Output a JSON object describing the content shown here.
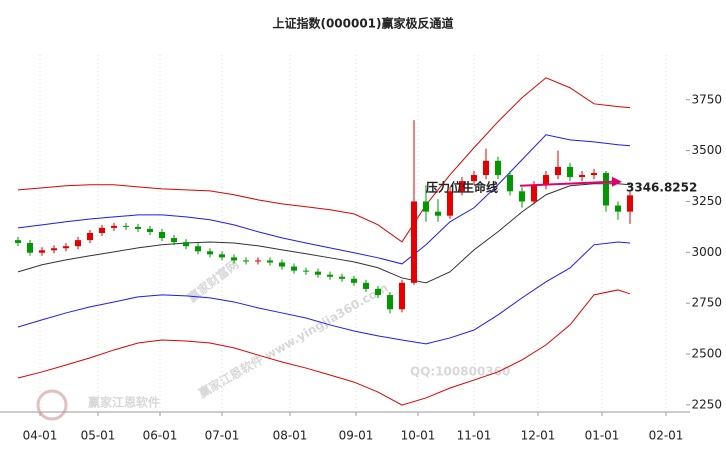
{
  "chart_data": {
    "type": "candlestick",
    "title": "上证指数(000001)赢家极反通道",
    "xlim": [
      -4.5,
      168
    ],
    "ylim": [
      2215,
      3970
    ],
    "yticks": [
      2250,
      2500,
      2750,
      3000,
      3250,
      3500,
      3750
    ],
    "xticks": [
      {
        "value": 5.5,
        "label": "04-01"
      },
      {
        "value": 20,
        "label": "05-01"
      },
      {
        "value": 35.5,
        "label": "06-01"
      },
      {
        "value": 51,
        "label": "07-01"
      },
      {
        "value": 68,
        "label": "08-01"
      },
      {
        "value": 84.5,
        "label": "09-01"
      },
      {
        "value": 100,
        "label": "10-01"
      },
      {
        "value": 114,
        "label": "11-01"
      },
      {
        "value": 130,
        "label": "12-01"
      },
      {
        "value": 146,
        "label": "01-01"
      },
      {
        "value": 162,
        "label": "02-01"
      }
    ],
    "up_color": "#e60000",
    "down_color": "#009900",
    "x": [
      0,
      3,
      6,
      9,
      12,
      15,
      18,
      21,
      24,
      27,
      30,
      33,
      36,
      39,
      42,
      45,
      48,
      51,
      54,
      57,
      60,
      63,
      66,
      69,
      72,
      75,
      78,
      81,
      84,
      87,
      90,
      93,
      96,
      99,
      102,
      105,
      108,
      111,
      114,
      117,
      120,
      123,
      126,
      129,
      132,
      135,
      138,
      141,
      144,
      147,
      150,
      153
    ],
    "open": [
      3060,
      3046,
      2998,
      3010,
      3020,
      3030,
      3060,
      3095,
      3120,
      3130,
      3125,
      3115,
      3100,
      3070,
      3050,
      3030,
      3005,
      2990,
      2975,
      2960,
      2955,
      2960,
      2950,
      2930,
      2910,
      2905,
      2890,
      2880,
      2870,
      2850,
      2820,
      2790,
      2720,
      2850,
      3250,
      3200,
      3180,
      3300,
      3350,
      3380,
      3450,
      3380,
      3300,
      3250,
      3330,
      3380,
      3420,
      3370,
      3380,
      3390,
      3230,
      3200
    ],
    "close": [
      3046,
      2998,
      3010,
      3020,
      3030,
      3060,
      3095,
      3120,
      3130,
      3125,
      3115,
      3100,
      3070,
      3050,
      3030,
      3005,
      2990,
      2975,
      2960,
      2955,
      2960,
      2950,
      2930,
      2910,
      2905,
      2890,
      2880,
      2870,
      2850,
      2820,
      2790,
      2720,
      2850,
      3250,
      3200,
      3180,
      3300,
      3350,
      3380,
      3450,
      3380,
      3300,
      3250,
      3330,
      3380,
      3420,
      3370,
      3380,
      3390,
      3230,
      3200,
      3280
    ],
    "high": [
      3075,
      3061,
      3025,
      3035,
      3045,
      3075,
      3110,
      3135,
      3145,
      3145,
      3140,
      3130,
      3115,
      3085,
      3065,
      3045,
      3020,
      3005,
      2990,
      2975,
      2975,
      2975,
      2965,
      2945,
      2925,
      2920,
      2905,
      2895,
      2885,
      2865,
      2835,
      2805,
      2865,
      3650,
      3330,
      3260,
      3320,
      3370,
      3400,
      3510,
      3470,
      3400,
      3320,
      3350,
      3400,
      3500,
      3440,
      3400,
      3410,
      3400,
      3250,
      3300
    ],
    "low": [
      3031,
      2983,
      2983,
      2995,
      3005,
      3015,
      3045,
      3080,
      3105,
      3110,
      3100,
      3085,
      3055,
      3035,
      3015,
      2990,
      2975,
      2960,
      2945,
      2940,
      2940,
      2935,
      2915,
      2895,
      2890,
      2875,
      2865,
      2855,
      2835,
      2805,
      2775,
      2700,
      2705,
      2840,
      3150,
      3150,
      3165,
      3280,
      3330,
      3360,
      3360,
      3280,
      3220,
      3235,
      3310,
      3360,
      3350,
      3350,
      3360,
      3200,
      3160,
      3140
    ],
    "line_x": [
      0,
      6,
      12,
      18,
      24,
      30,
      36,
      42,
      48,
      54,
      60,
      66,
      72,
      78,
      84,
      90,
      96,
      102,
      108,
      114,
      120,
      126,
      132,
      138,
      144,
      150,
      153
    ],
    "lines": [
      {
        "color": "#e00000",
        "values": [
          3307,
          3317,
          3327,
          3332,
          3332,
          3322,
          3312,
          3307,
          3302,
          3283,
          3258,
          3238,
          3224,
          3209,
          3189,
          3135,
          3051,
          3233,
          3381,
          3514,
          3642,
          3760,
          3858,
          3809,
          3730,
          3716,
          3711
        ]
      },
      {
        "color": "#1a1aff",
        "values": [
          3120,
          3135,
          3150,
          3164,
          3174,
          3184,
          3184,
          3174,
          3160,
          3135,
          3101,
          3071,
          3046,
          3022,
          2998,
          2973,
          2943,
          3037,
          3150,
          3219,
          3332,
          3455,
          3578,
          3553,
          3543,
          3529,
          3524
        ]
      },
      {
        "color": "#333333",
        "values": [
          2904,
          2939,
          2963,
          2983,
          3002,
          3022,
          3037,
          3046,
          3051,
          3046,
          3032,
          3012,
          2993,
          2973,
          2953,
          2924,
          2874,
          2850,
          2904,
          3012,
          3101,
          3199,
          3283,
          3327,
          3337,
          3337,
          3332
        ]
      },
      {
        "color": "#1a1aff",
        "values": [
          2633,
          2668,
          2702,
          2732,
          2756,
          2781,
          2791,
          2786,
          2776,
          2756,
          2727,
          2702,
          2677,
          2643,
          2613,
          2589,
          2569,
          2550,
          2579,
          2618,
          2692,
          2776,
          2855,
          2923,
          3037,
          3051,
          3046
        ]
      },
      {
        "color": "#e00000",
        "values": [
          2382,
          2412,
          2446,
          2481,
          2520,
          2554,
          2569,
          2564,
          2554,
          2530,
          2495,
          2461,
          2431,
          2397,
          2362,
          2313,
          2249,
          2284,
          2333,
          2372,
          2412,
          2471,
          2545,
          2643,
          2791,
          2815,
          2796
        ]
      }
    ],
    "annotation_label": "压力位生命线",
    "resistance": 3346.8252,
    "resistance_color": "#e0006e",
    "watermarks": [
      "赢家财富网",
      "赢家江恩软件 www.yingjia360.com",
      "QQ:100800360",
      "赢家江恩软件"
    ]
  }
}
